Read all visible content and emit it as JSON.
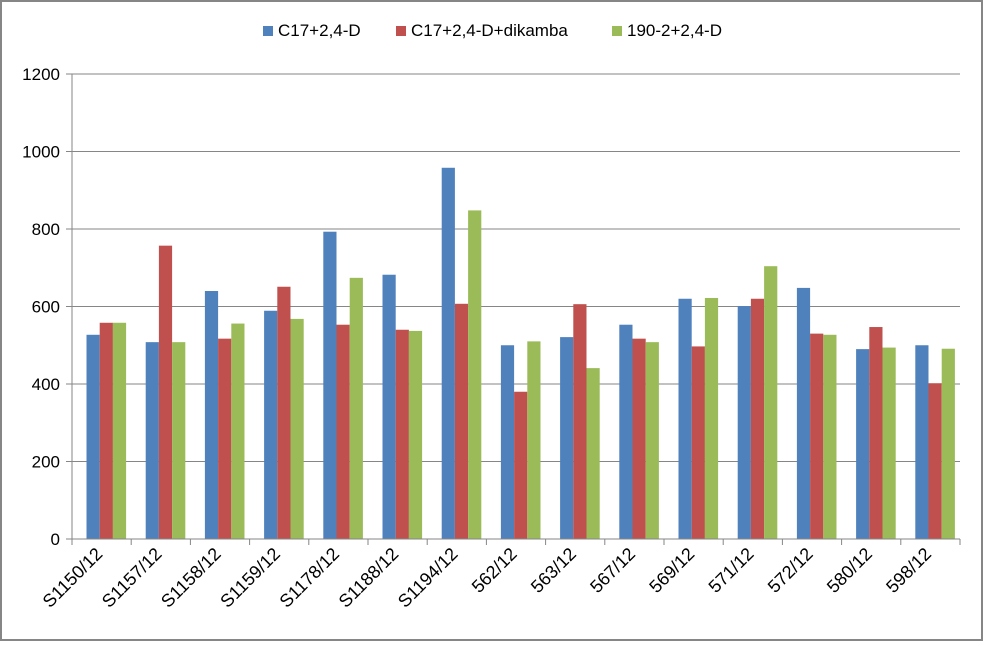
{
  "chart_data": {
    "type": "bar",
    "title": "",
    "xlabel": "",
    "ylabel": "",
    "ylim": [
      0,
      1200
    ],
    "yticks": [
      0,
      200,
      400,
      600,
      800,
      1000,
      1200
    ],
    "grid": "horizontal",
    "legend_position": "top",
    "categories": [
      "S1150/12",
      "S1157/12",
      "S1158/12",
      "S1159/12",
      "S1178/12",
      "S1188/12",
      "S1194/12",
      "562/12",
      "563/12",
      "567/12",
      "569/12",
      "571/12",
      "572/12",
      "580/12",
      "598/12"
    ],
    "series": [
      {
        "name": "C17+2,4-D",
        "color": "#4f81bd",
        "values": [
          527,
          508,
          640,
          589,
          793,
          682,
          958,
          500,
          521,
          553,
          620,
          601,
          648,
          490,
          500
        ]
      },
      {
        "name": "C17+2,4-D+dikamba",
        "color": "#c0504d",
        "values": [
          558,
          757,
          517,
          651,
          553,
          540,
          607,
          380,
          606,
          517,
          497,
          620,
          530,
          547,
          402
        ]
      },
      {
        "name": "190-2+2,4-D",
        "color": "#9bbb59",
        "values": [
          558,
          508,
          556,
          568,
          674,
          537,
          848,
          510,
          441,
          508,
          622,
          704,
          527,
          494,
          491
        ]
      }
    ]
  }
}
